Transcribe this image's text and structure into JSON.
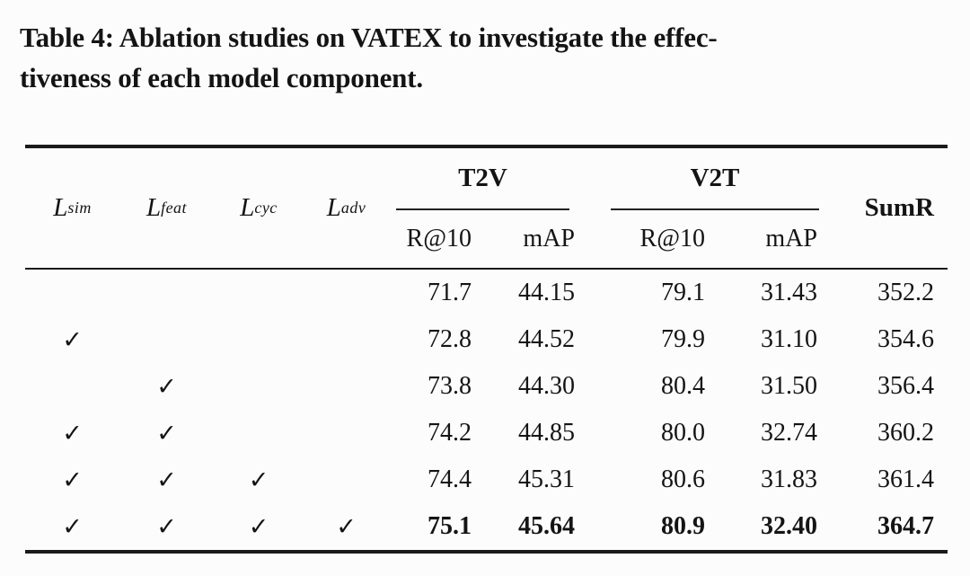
{
  "caption": {
    "line1": "Table 4: Ablation studies on VATEX to investigate the effec-",
    "line2": "tiveness of each model component."
  },
  "table": {
    "loss_columns": [
      {
        "base": "L",
        "sub": "sim"
      },
      {
        "base": "L",
        "sub": "feat"
      },
      {
        "base": "L",
        "sub": "cyc"
      },
      {
        "base": "L",
        "sub": "adv"
      }
    ],
    "groups": [
      {
        "label": "T2V"
      },
      {
        "label": "V2T"
      }
    ],
    "metric_headers": [
      "R@10",
      "mAP",
      "R@10",
      "mAP"
    ],
    "sumr_label": "SumR",
    "check_glyph": "✓",
    "rows": [
      {
        "checks": [
          false,
          false,
          false,
          false
        ],
        "values": [
          "71.7",
          "44.15",
          "79.1",
          "31.43",
          "352.2"
        ],
        "bold": false
      },
      {
        "checks": [
          true,
          false,
          false,
          false
        ],
        "values": [
          "72.8",
          "44.52",
          "79.9",
          "31.10",
          "354.6"
        ],
        "bold": false
      },
      {
        "checks": [
          false,
          true,
          false,
          false
        ],
        "values": [
          "73.8",
          "44.30",
          "80.4",
          "31.50",
          "356.4"
        ],
        "bold": false
      },
      {
        "checks": [
          true,
          true,
          false,
          false
        ],
        "values": [
          "74.2",
          "44.85",
          "80.0",
          "32.74",
          "360.2"
        ],
        "bold": false
      },
      {
        "checks": [
          true,
          true,
          true,
          false
        ],
        "values": [
          "74.4",
          "45.31",
          "80.6",
          "31.83",
          "361.4"
        ],
        "bold": false
      },
      {
        "checks": [
          true,
          true,
          true,
          true
        ],
        "values": [
          "75.1",
          "45.64",
          "80.9",
          "32.40",
          "364.7"
        ],
        "bold": true
      }
    ]
  },
  "colors": {
    "background": "#fcfcfc",
    "text": "#141414",
    "rule": "#1a1a1a"
  }
}
